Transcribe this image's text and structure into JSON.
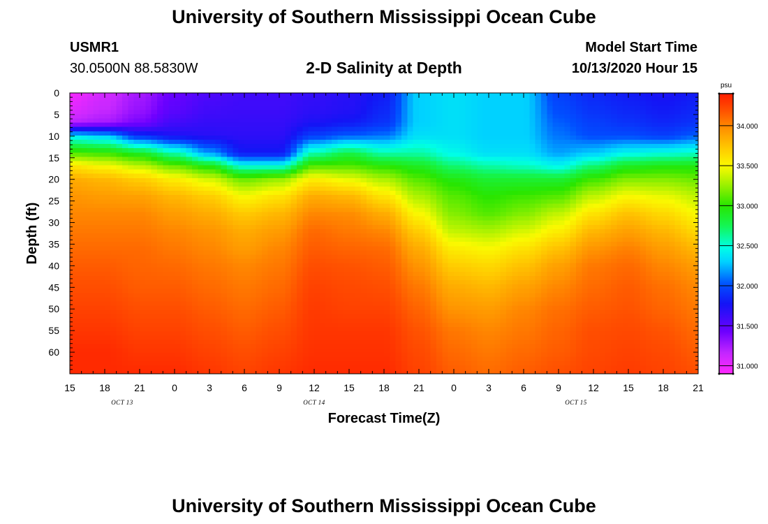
{
  "header": {
    "title": "University of Southern Mississippi Ocean Cube",
    "station_id": "USMR1",
    "coordinates": "30.0500N 88.5830W",
    "plot_title": "2-D Salinity at Depth",
    "model_start_label": "Model Start Time",
    "model_start_value": "10/13/2020 Hour 15"
  },
  "footer": {
    "title": "University of Southern Mississippi Ocean Cube"
  },
  "chart_data": {
    "type": "heatmap",
    "title": "2-D Salinity at Depth",
    "xlabel": "Forecast Time(Z)",
    "ylabel": "Depth (ft)",
    "x_hours_range": [
      0,
      54
    ],
    "ylim": [
      0,
      65
    ],
    "y_inverted": true,
    "x_ticks": [
      {
        "hour": 0,
        "label": "15"
      },
      {
        "hour": 3,
        "label": "18"
      },
      {
        "hour": 6,
        "label": "21"
      },
      {
        "hour": 9,
        "label": "0"
      },
      {
        "hour": 12,
        "label": "3"
      },
      {
        "hour": 15,
        "label": "6"
      },
      {
        "hour": 18,
        "label": "9"
      },
      {
        "hour": 21,
        "label": "12"
      },
      {
        "hour": 24,
        "label": "15"
      },
      {
        "hour": 27,
        "label": "18"
      },
      {
        "hour": 30,
        "label": "21"
      },
      {
        "hour": 33,
        "label": "0"
      },
      {
        "hour": 36,
        "label": "3"
      },
      {
        "hour": 39,
        "label": "6"
      },
      {
        "hour": 42,
        "label": "9"
      },
      {
        "hour": 45,
        "label": "12"
      },
      {
        "hour": 48,
        "label": "15"
      },
      {
        "hour": 51,
        "label": "18"
      },
      {
        "hour": 54,
        "label": "21"
      }
    ],
    "date_labels": [
      {
        "hour": 4.5,
        "label": "OCT 13"
      },
      {
        "hour": 21,
        "label": "OCT 14"
      },
      {
        "hour": 43.5,
        "label": "OCT 15"
      }
    ],
    "y_ticks": [
      0,
      5,
      10,
      15,
      20,
      25,
      30,
      35,
      40,
      45,
      50,
      55,
      60
    ],
    "colorbar": {
      "unit": "psu",
      "range": [
        30.9,
        34.4
      ],
      "labels": [
        "31.000",
        "31.500",
        "32.000",
        "32.500",
        "33.000",
        "33.500",
        "34.000"
      ],
      "label_values": [
        31.0,
        31.5,
        32.0,
        32.5,
        33.0,
        33.5,
        34.0
      ]
    },
    "profile_depths_ft": [
      0,
      4,
      7,
      10,
      14,
      17,
      20,
      24,
      28,
      32,
      36,
      40,
      45,
      50,
      55,
      60,
      65
    ],
    "profiles": [
      {
        "hour": 0,
        "salinity": [
          30.95,
          31.05,
          31.2,
          32.4,
          33.1,
          33.6,
          33.85,
          33.95,
          34.0,
          34.05,
          34.1,
          34.15,
          34.2,
          34.25,
          34.3,
          34.35,
          34.35
        ]
      },
      {
        "hour": 3,
        "salinity": [
          31.1,
          31.15,
          31.25,
          32.3,
          33.05,
          33.5,
          33.8,
          33.92,
          34.0,
          34.05,
          34.1,
          34.15,
          34.2,
          34.25,
          34.3,
          34.35,
          34.35
        ]
      },
      {
        "hour": 6,
        "salinity": [
          31.25,
          31.3,
          31.4,
          31.9,
          32.9,
          33.35,
          33.7,
          33.9,
          34.0,
          34.05,
          34.1,
          34.12,
          34.15,
          34.2,
          34.25,
          34.3,
          34.35
        ]
      },
      {
        "hour": 9,
        "salinity": [
          31.45,
          31.5,
          31.6,
          31.75,
          32.6,
          33.15,
          33.55,
          33.8,
          33.92,
          34.0,
          34.05,
          34.1,
          34.15,
          34.2,
          34.25,
          34.3,
          34.35
        ]
      },
      {
        "hour": 12,
        "salinity": [
          31.55,
          31.6,
          31.65,
          31.7,
          32.2,
          32.95,
          33.4,
          33.7,
          33.85,
          33.95,
          34.0,
          34.05,
          34.1,
          34.15,
          34.2,
          34.25,
          34.3
        ]
      },
      {
        "hour": 15,
        "salinity": [
          31.6,
          31.62,
          31.65,
          31.68,
          31.8,
          32.5,
          33.15,
          33.5,
          33.72,
          33.85,
          33.92,
          34.0,
          34.05,
          34.1,
          34.15,
          34.2,
          34.25
        ]
      },
      {
        "hour": 18,
        "salinity": [
          31.6,
          31.62,
          31.65,
          31.68,
          31.8,
          32.5,
          33.25,
          33.6,
          33.8,
          33.92,
          34.0,
          34.05,
          34.1,
          34.15,
          34.2,
          34.25,
          34.3
        ]
      },
      {
        "hour": 21,
        "salinity": [
          31.65,
          31.68,
          31.75,
          31.95,
          32.6,
          33.1,
          33.55,
          33.85,
          34.0,
          34.1,
          34.15,
          34.2,
          34.25,
          34.28,
          34.3,
          34.32,
          34.35
        ]
      },
      {
        "hour": 24,
        "salinity": [
          31.7,
          31.72,
          31.8,
          32.05,
          32.8,
          33.1,
          33.45,
          33.8,
          33.98,
          34.05,
          34.12,
          34.18,
          34.22,
          34.25,
          34.3,
          34.32,
          34.35
        ]
      },
      {
        "hour": 27,
        "salinity": [
          31.8,
          31.85,
          31.9,
          32.1,
          32.6,
          33.0,
          33.3,
          33.6,
          33.85,
          34.0,
          34.1,
          34.15,
          34.2,
          34.25,
          34.3,
          34.32,
          34.35
        ]
      },
      {
        "hour": 30,
        "salinity": [
          32.3,
          32.3,
          32.3,
          32.35,
          32.6,
          32.9,
          33.1,
          33.3,
          33.5,
          33.7,
          33.85,
          33.95,
          34.05,
          34.12,
          34.18,
          34.22,
          34.25
        ]
      },
      {
        "hour": 33,
        "salinity": [
          32.35,
          32.35,
          32.35,
          32.35,
          32.45,
          32.7,
          32.95,
          33.1,
          33.2,
          33.35,
          33.55,
          33.7,
          33.85,
          33.95,
          34.05,
          34.1,
          34.15
        ]
      },
      {
        "hour": 36,
        "salinity": [
          32.3,
          32.3,
          32.3,
          32.3,
          32.35,
          32.6,
          32.85,
          33.0,
          33.1,
          33.3,
          33.5,
          33.65,
          33.8,
          33.92,
          34.0,
          34.05,
          34.1
        ]
      },
      {
        "hour": 39,
        "salinity": [
          32.3,
          32.3,
          32.3,
          32.3,
          32.35,
          32.55,
          32.85,
          33.05,
          33.2,
          33.4,
          33.6,
          33.75,
          33.9,
          34.0,
          34.05,
          34.1,
          34.15
        ]
      },
      {
        "hour": 42,
        "salinity": [
          31.95,
          32.0,
          32.05,
          32.1,
          32.2,
          32.45,
          32.85,
          33.1,
          33.35,
          33.55,
          33.75,
          33.9,
          34.0,
          34.08,
          34.12,
          34.15,
          34.2
        ]
      },
      {
        "hour": 45,
        "salinity": [
          31.85,
          31.9,
          31.95,
          32.0,
          32.3,
          32.7,
          33.05,
          33.35,
          33.6,
          33.8,
          33.95,
          34.05,
          34.1,
          34.15,
          34.2,
          34.22,
          34.25
        ]
      },
      {
        "hour": 48,
        "salinity": [
          31.8,
          31.85,
          31.9,
          32.0,
          32.45,
          32.9,
          33.2,
          33.5,
          33.75,
          33.9,
          34.02,
          34.1,
          34.15,
          34.18,
          34.22,
          34.25,
          34.28
        ]
      },
      {
        "hour": 51,
        "salinity": [
          31.75,
          31.8,
          31.85,
          31.95,
          32.5,
          32.95,
          33.2,
          33.45,
          33.65,
          33.8,
          33.92,
          34.0,
          34.08,
          34.12,
          34.18,
          34.22,
          34.25
        ]
      },
      {
        "hour": 54,
        "salinity": [
          31.8,
          31.85,
          31.9,
          32.05,
          32.55,
          32.95,
          33.15,
          33.35,
          33.5,
          33.65,
          33.8,
          33.92,
          34.0,
          34.05,
          34.1,
          34.15,
          34.2
        ]
      }
    ]
  }
}
